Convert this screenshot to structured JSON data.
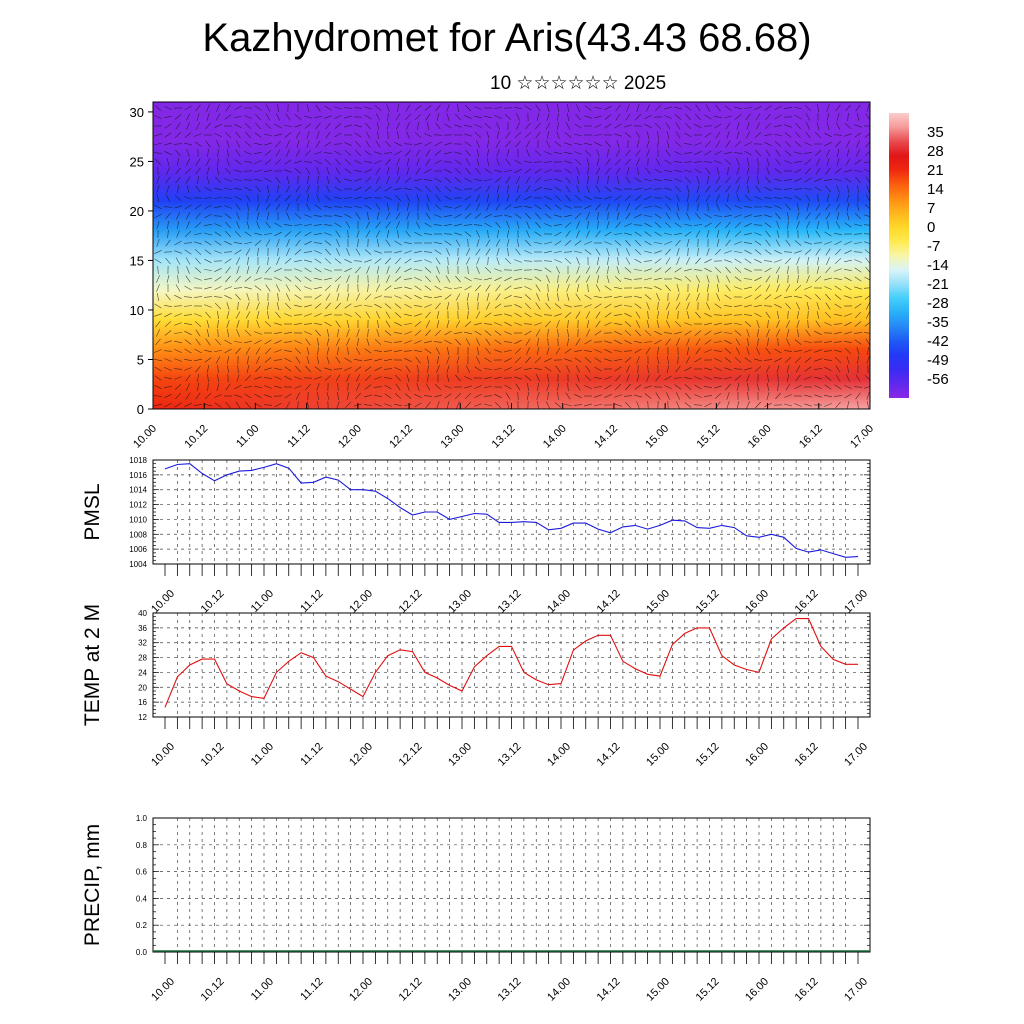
{
  "title": "Kazhydromet for Aris(43.43 68.68)",
  "subtitle": "10 ☆☆☆☆☆☆ 2025",
  "chart_data": [
    {
      "type": "heatmap",
      "description_kind": "time-height cross-section with wind vectors",
      "y_ticks": [
        "0",
        "5",
        "10",
        "15",
        "20",
        "25",
        "30"
      ],
      "ylim": [
        0,
        31
      ],
      "x_ticks": [
        "10.00",
        "10.12",
        "11.00",
        "11.12",
        "12.00",
        "12.12",
        "13.00",
        "13.12",
        "14.00",
        "14.12",
        "15.00",
        "15.12",
        "16.00",
        "16.12",
        "17.00"
      ],
      "colorbar": {
        "labels": [
          "35",
          "28",
          "21",
          "14",
          "7",
          "0",
          "-7",
          "-14",
          "-21",
          "-28",
          "-35",
          "-42",
          "-49",
          "-56"
        ],
        "range": [
          -63,
          42
        ]
      },
      "temperature_profile": {
        "levels": [
          0,
          3,
          6,
          9,
          12,
          15,
          18,
          21,
          24,
          27,
          30
        ],
        "start_of_period": [
          22,
          18,
          10,
          -2,
          -12,
          -20,
          -34,
          -46,
          -58,
          -62,
          -62
        ],
        "end_of_period": [
          38,
          30,
          18,
          4,
          -5,
          -16,
          -30,
          -44,
          -58,
          -62,
          -62
        ]
      }
    },
    {
      "type": "line",
      "ylabel": "PMSL",
      "ylim": [
        1004,
        1018
      ],
      "y_ticks": [
        "1004",
        "1006",
        "1008",
        "1010",
        "1012",
        "1014",
        "1016",
        "1018"
      ],
      "x_ticks": [
        "10.00",
        "10.12",
        "11.00",
        "11.12",
        "12.00",
        "12.12",
        "13.00",
        "13.12",
        "14.00",
        "14.12",
        "15.00",
        "15.12",
        "16.00",
        "16.12",
        "17.00"
      ],
      "series": [
        {
          "color": "#1a1adb",
          "values": [
            1016.8,
            1017.4,
            1017.5,
            1016.2,
            1015.2,
            1016.0,
            1016.5,
            1016.6,
            1017.0,
            1017.5,
            1016.9,
            1014.9,
            1015.0,
            1015.7,
            1015.3,
            1014.0,
            1014.0,
            1013.8,
            1012.8,
            1011.6,
            1010.6,
            1011.0,
            1011.0,
            1010.0,
            1010.4,
            1010.8,
            1010.7,
            1009.6,
            1009.6,
            1009.7,
            1009.6,
            1008.6,
            1008.8,
            1009.5,
            1009.5,
            1008.7,
            1008.2,
            1009.0,
            1009.2,
            1008.7,
            1009.2,
            1009.9,
            1009.8,
            1008.9,
            1008.8,
            1009.2,
            1008.9,
            1007.8,
            1007.6,
            1008.0,
            1007.6,
            1006.1,
            1005.6,
            1005.9,
            1005.4,
            1004.9,
            1005.0
          ]
        }
      ]
    },
    {
      "type": "line",
      "ylabel": "TEMP at 2 M",
      "ylim": [
        12,
        40
      ],
      "y_ticks": [
        "12",
        "16",
        "20",
        "24",
        "28",
        "32",
        "36",
        "40"
      ],
      "x_ticks": [
        "10.00",
        "10.12",
        "11.00",
        "11.12",
        "12.00",
        "12.12",
        "13.00",
        "13.12",
        "14.00",
        "14.12",
        "15.00",
        "15.12",
        "16.00",
        "16.12",
        "17.00"
      ],
      "series": [
        {
          "color": "#e01010",
          "values": [
            14.6,
            22.8,
            26.0,
            27.6,
            27.6,
            20.9,
            19.0,
            17.5,
            17.0,
            24.0,
            27.0,
            29.3,
            28.0,
            23.0,
            21.5,
            19.5,
            17.5,
            24.0,
            28.5,
            30.1,
            29.6,
            24.0,
            22.5,
            20.5,
            19.0,
            25.5,
            28.5,
            31.0,
            31.0,
            24.0,
            22.0,
            20.7,
            21.0,
            30.0,
            32.5,
            34.0,
            34.0,
            27.0,
            25.0,
            23.5,
            23.0,
            31.5,
            34.5,
            36.0,
            36.0,
            28.5,
            26.0,
            24.8,
            24.0,
            33.0,
            36.0,
            38.5,
            38.5,
            31.0,
            27.5,
            26.2,
            26.2
          ]
        }
      ]
    },
    {
      "type": "bar",
      "ylabel": "PRECIP, mm",
      "ylim": [
        0,
        1
      ],
      "y_ticks": [
        "0.0",
        "0.2",
        "0.4",
        "0.6",
        "0.8",
        "1.0"
      ],
      "x_ticks": [
        "10.00",
        "10.12",
        "11.00",
        "11.12",
        "12.00",
        "12.12",
        "13.00",
        "13.12",
        "14.00",
        "14.12",
        "15.00",
        "15.12",
        "16.00",
        "16.12",
        "17.00"
      ],
      "values": [
        0,
        0,
        0,
        0,
        0,
        0,
        0,
        0,
        0,
        0,
        0,
        0,
        0,
        0,
        0,
        0,
        0,
        0,
        0,
        0,
        0,
        0,
        0,
        0,
        0,
        0,
        0,
        0,
        0,
        0,
        0,
        0,
        0,
        0,
        0,
        0,
        0,
        0,
        0,
        0,
        0,
        0,
        0,
        0,
        0,
        0,
        0,
        0,
        0,
        0,
        0,
        0,
        0,
        0,
        0,
        0,
        0
      ]
    }
  ]
}
